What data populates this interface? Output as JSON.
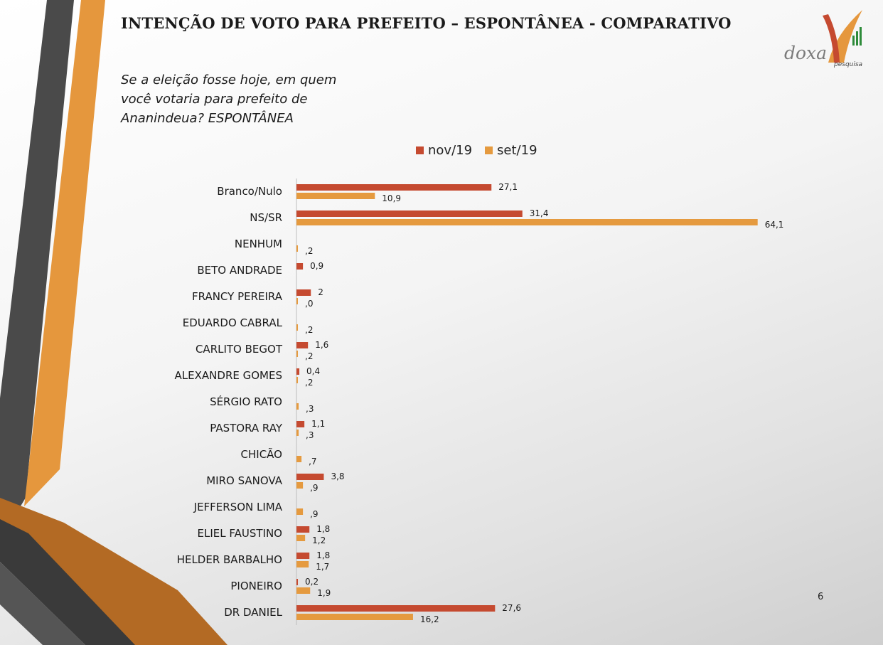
{
  "header": {
    "title": "INTENÇÃO DE VOTO PARA PREFEITO – ESPONTÂNEA - COMPARATIVO",
    "question": "Se a eleição fosse hoje, em quem você votaria para prefeito de Ananindeua? ESPONTÂNEA"
  },
  "logo": {
    "text": "doxa",
    "sub": "pesquisa"
  },
  "page_number": "6",
  "colors": {
    "nov": "#c54a30",
    "set": "#e59a3f"
  },
  "chart_data": {
    "type": "bar",
    "orientation": "horizontal",
    "title": "",
    "legend_position": "top",
    "grid": false,
    "categories": [
      "Branco/Nulo",
      "NS/SR",
      "NENHUM",
      "BETO ANDRADE",
      "FRANCY PEREIRA",
      "EDUARDO CABRAL",
      "CARLITO BEGOT",
      "ALEXANDRE GOMES",
      "SÉRGIO RATO",
      "PASTORA RAY",
      "CHICÃO",
      "MIRO SANOVA",
      "JEFFERSON LIMA",
      "ELIEL FAUSTINO",
      "HELDER BARBALHO",
      "PIONEIRO",
      "DR DANIEL"
    ],
    "series": [
      {
        "name": "nov/19",
        "values": [
          27.1,
          31.4,
          null,
          0.9,
          2,
          null,
          1.6,
          0.4,
          null,
          1.1,
          null,
          3.8,
          null,
          1.8,
          1.8,
          0.2,
          27.6
        ],
        "labels": [
          "27,1",
          "31,4",
          "",
          "0,9",
          "2",
          "",
          "1,6",
          "0,4",
          "",
          "1,1",
          "",
          "3,8",
          "",
          "1,8",
          "1,8",
          "0,2",
          "27,6"
        ]
      },
      {
        "name": "set/19",
        "values": [
          10.9,
          64.1,
          0.2,
          null,
          0.0,
          0.2,
          0.2,
          0.2,
          0.3,
          0.3,
          0.7,
          0.9,
          0.9,
          1.2,
          1.7,
          1.9,
          16.2
        ],
        "labels": [
          "10,9",
          "64,1",
          ",2",
          "",
          ",0",
          ",2",
          ",2",
          ",2",
          ",3",
          ",3",
          ",7",
          ",9",
          ",9",
          "1,2",
          "1,7",
          "1,9",
          "16,2"
        ]
      }
    ]
  }
}
